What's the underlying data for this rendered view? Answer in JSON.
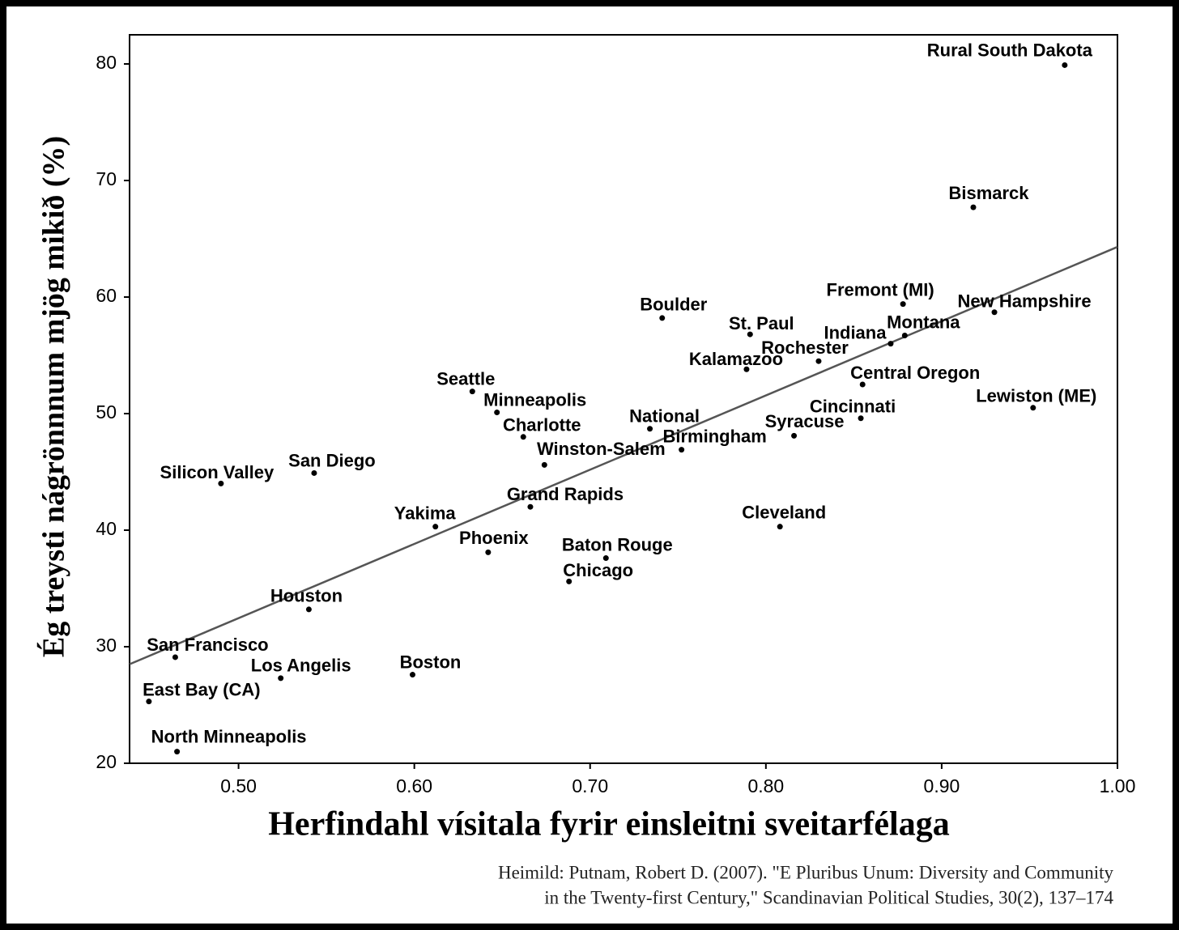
{
  "chart_data": {
    "type": "scatter",
    "x_label": "Herfindahl vísitala fyrir einsleitni sveitarfélaga",
    "y_label": "Ég treysti nágrönnnum mjög mikið (%)",
    "source_lines": [
      "Heimild: Putnam, Robert D. (2007). \"E Pluribus Unum: Diversity and Community",
      "in the Twenty-first Century,\" Scandinavian Political Studies, 30(2), 137–174"
    ],
    "xlim": [
      0.438,
      1.0
    ],
    "ylim": [
      20,
      82.5
    ],
    "xticks": [
      {
        "value": 0.5,
        "label": "0.50"
      },
      {
        "value": 0.6,
        "label": "0.60"
      },
      {
        "value": 0.7,
        "label": "0.70"
      },
      {
        "value": 0.8,
        "label": "0.80"
      },
      {
        "value": 0.9,
        "label": "0.90"
      },
      {
        "value": 1.0,
        "label": "1.00"
      }
    ],
    "yticks": [
      20,
      30,
      40,
      50,
      60,
      70,
      80
    ],
    "color": "#000000",
    "trendline": {
      "color": "#555555",
      "x": [
        0.438,
        1.0
      ],
      "y": [
        28.5,
        64.3
      ]
    },
    "labels": [
      "Rural South Dakota",
      "Bismarck",
      "Fremont (MI)",
      "New Hampshire",
      "Montana",
      "Indiana",
      "Boulder",
      "St. Paul",
      "Rochester",
      "Kalamazoo",
      "Central Oregon",
      "Lewiston (ME)",
      "Cincinnati",
      "Syracuse",
      "Seattle",
      "Minneapolis",
      "Charlotte",
      "National",
      "Birmingham",
      "Winston-Salem",
      "Silicon Valley",
      "San Diego",
      "Grand Rapids",
      "Yakima",
      "Cleveland",
      "Phoenix",
      "Baton Rouge",
      "Chicago",
      "Houston",
      "San Francisco",
      "Los Angelis",
      "Boston",
      "East Bay (CA)",
      "North Minneapolis"
    ],
    "x": [
      0.97,
      0.918,
      0.878,
      0.93,
      0.879,
      0.871,
      0.741,
      0.791,
      0.83,
      0.789,
      0.855,
      0.952,
      0.854,
      0.816,
      0.633,
      0.647,
      0.662,
      0.734,
      0.752,
      0.674,
      0.49,
      0.543,
      0.666,
      0.612,
      0.808,
      0.642,
      0.709,
      0.688,
      0.54,
      0.464,
      0.524,
      0.599,
      0.449,
      0.465
    ],
    "values": [
      79.9,
      67.7,
      59.4,
      58.7,
      56.7,
      56.0,
      58.2,
      56.8,
      54.5,
      53.8,
      52.5,
      50.5,
      49.6,
      48.1,
      51.9,
      50.1,
      48.0,
      48.7,
      46.9,
      45.6,
      44.0,
      44.9,
      42.0,
      40.3,
      40.3,
      38.1,
      37.6,
      35.6,
      33.2,
      29.1,
      27.3,
      27.6,
      25.3,
      21.0
    ]
  }
}
